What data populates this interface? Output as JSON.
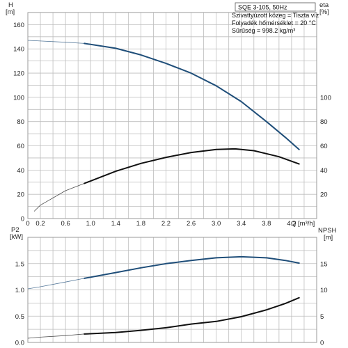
{
  "chart_data": [
    {
      "type": "line",
      "title": "SQE 3-105, 50Hz",
      "annotations": [
        "Szivattyúzott közeg = Tiszta víz",
        "Folyadék hőmérséklet = 20 °C",
        "Sűrűség = 998.2 kg/m³"
      ],
      "ylabel_left": "H",
      "yunit_left": "[m]",
      "ylabel_right": "eta",
      "yunit_right": "[%]",
      "xunit": "Q [m³/h]",
      "x_ticks": [
        0,
        0.2,
        0.6,
        1.0,
        1.4,
        1.8,
        2.2,
        2.6,
        3.0,
        3.4,
        3.8,
        4.2
      ],
      "x_tick_labels": [
        "0",
        "0.2",
        "0.6",
        "1.0",
        "1.4",
        "1.8",
        "2.2",
        "2.6",
        "3.0",
        "3.4",
        "3.8",
        "4.2"
      ],
      "xlim": [
        0,
        4.6
      ],
      "y_left_ticks": [
        0,
        20,
        40,
        60,
        80,
        100,
        120,
        140,
        160
      ],
      "y_left_tick_labels": [
        "0",
        "20",
        "40",
        "60",
        "80",
        "100",
        "120",
        "140",
        "160"
      ],
      "ylim_left": [
        0,
        170
      ],
      "y_right_ticks": [
        20,
        40,
        60,
        80,
        100
      ],
      "y_right_tick_labels": [
        "20",
        "40",
        "60",
        "80",
        "100"
      ],
      "ylim_right": [
        0,
        170
      ],
      "grid": true,
      "colors": {
        "head": "#1f4e79",
        "eta": "#111111",
        "thin": "#7f7f7f"
      },
      "series": [
        {
          "axis": "left",
          "color": "#1f4e79",
          "bold_from": 0.9,
          "x": [
            0.0,
            0.2,
            0.6,
            0.9,
            1.4,
            1.8,
            2.2,
            2.6,
            3.0,
            3.4,
            3.8,
            4.1,
            4.32
          ],
          "values": [
            147,
            146.5,
            145.5,
            144.5,
            140.5,
            135,
            128,
            120,
            109.5,
            96.5,
            80,
            67,
            57
          ]
        },
        {
          "axis": "right",
          "color": "#111111",
          "bold_from": 0.9,
          "x": [
            0.1,
            0.2,
            0.6,
            0.9,
            1.4,
            1.8,
            2.2,
            2.6,
            3.0,
            3.3,
            3.6,
            4.0,
            4.32
          ],
          "values": [
            6,
            11,
            23,
            29,
            39,
            45.5,
            50.5,
            54.5,
            57,
            57.5,
            56,
            51,
            45
          ]
        }
      ]
    },
    {
      "type": "line",
      "ylabel_left": "P2",
      "yunit_left": "[kW]",
      "ylabel_right": "NPSH",
      "yunit_right": "[m]",
      "x_ticks": [
        0,
        0.2,
        0.6,
        1.0,
        1.4,
        1.8,
        2.2,
        2.6,
        3.0,
        3.4,
        3.8,
        4.2
      ],
      "xlim": [
        0,
        4.6
      ],
      "y_left_ticks": [
        0.0,
        0.5,
        1.0,
        1.5
      ],
      "y_left_tick_labels": [
        "0.0",
        "0.5",
        "1.0",
        "1.5"
      ],
      "ylim_left": [
        0,
        2.0
      ],
      "y_right_ticks": [
        0,
        5,
        10,
        15
      ],
      "y_right_tick_labels": [
        "0",
        "5",
        "10",
        "15"
      ],
      "ylim_right": [
        0,
        20
      ],
      "grid": true,
      "series": [
        {
          "axis": "left",
          "color": "#1f4e79",
          "bold_from": 0.9,
          "x": [
            0.0,
            0.2,
            0.6,
            0.9,
            1.4,
            1.8,
            2.2,
            2.6,
            3.0,
            3.4,
            3.8,
            4.1,
            4.32
          ],
          "values": [
            1.02,
            1.06,
            1.15,
            1.22,
            1.33,
            1.42,
            1.5,
            1.56,
            1.61,
            1.63,
            1.61,
            1.56,
            1.51
          ]
        },
        {
          "axis": "right",
          "color": "#111111",
          "bold_from": 0.9,
          "x": [
            0.0,
            0.2,
            0.6,
            0.9,
            1.4,
            1.8,
            2.2,
            2.6,
            3.0,
            3.4,
            3.8,
            4.1,
            4.32
          ],
          "values": [
            0.8,
            1.0,
            1.3,
            1.6,
            1.9,
            2.3,
            2.8,
            3.5,
            4.0,
            4.9,
            6.2,
            7.4,
            8.5
          ]
        }
      ]
    }
  ]
}
